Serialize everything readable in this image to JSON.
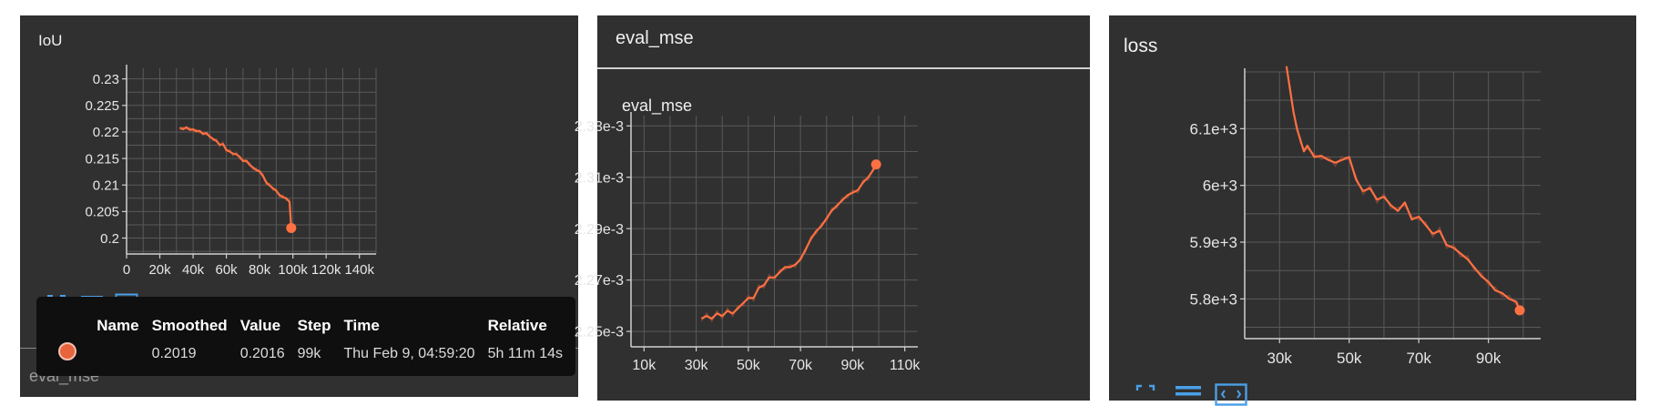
{
  "colors": {
    "panel_bg": "#303030",
    "line": "#ff7043",
    "grid": "#5a5a5a",
    "tooltip_bg": "#0f0f0f"
  },
  "icons": [
    "fullscreen-icon",
    "list-icon",
    "fit-domain-icon"
  ],
  "panels": {
    "iou": {
      "title": "IoU",
      "under_label": "eval_mse"
    },
    "eval": {
      "header": "eval_mse",
      "title": "eval_mse"
    },
    "loss": {
      "title": "loss"
    }
  },
  "tooltip": {
    "headers": [
      "Name",
      "Smoothed",
      "Value",
      "Step",
      "Time",
      "Relative"
    ],
    "row": {
      "name": "",
      "smoothed": "0.2019",
      "value": "0.2016",
      "step": "99k",
      "time": "Thu Feb 9, 04:59:20",
      "relative": "5h 11m 14s"
    }
  },
  "chart_data": [
    {
      "type": "line",
      "title": "IoU",
      "xlim": [
        0,
        150000
      ],
      "ylim": [
        0.197,
        0.232
      ],
      "x_ticks": [
        0,
        20000,
        40000,
        60000,
        80000,
        100000,
        120000,
        140000
      ],
      "x_tick_labels": [
        "0",
        "20k",
        "40k",
        "60k",
        "80k",
        "100k",
        "120k",
        "140k"
      ],
      "y_ticks": [
        0.2,
        0.205,
        0.21,
        0.215,
        0.22,
        0.225,
        0.23
      ],
      "y_tick_labels": [
        "0.2",
        "0.205",
        "0.21",
        "0.215",
        "0.22",
        "0.225",
        "0.23"
      ],
      "grid": true,
      "series": [
        {
          "x": [
            32000,
            34000,
            36000,
            38000,
            40000,
            42000,
            44000,
            46000,
            48000,
            50000,
            52000,
            54000,
            56000,
            58000,
            60000,
            62000,
            64000,
            66000,
            68000,
            70000,
            72000,
            74000,
            76000,
            78000,
            80000,
            82000,
            84000,
            86000,
            88000,
            90000,
            92000,
            94000,
            96000,
            98000,
            99000
          ],
          "y": [
            0.2208,
            0.2205,
            0.2209,
            0.2204,
            0.2205,
            0.2201,
            0.2202,
            0.2196,
            0.2198,
            0.2191,
            0.2187,
            0.2183,
            0.2176,
            0.2177,
            0.2166,
            0.2163,
            0.2159,
            0.2158,
            0.2153,
            0.2145,
            0.2146,
            0.2138,
            0.2133,
            0.2128,
            0.2126,
            0.2117,
            0.2105,
            0.2099,
            0.2094,
            0.2089,
            0.2081,
            0.2077,
            0.2075,
            0.2068,
            0.2019
          ]
        }
      ],
      "last_point": [
        99000,
        0.2019
      ]
    },
    {
      "type": "line",
      "title": "eval_mse",
      "xlim": [
        5000,
        115000
      ],
      "ylim": [
        0.002244,
        0.002334
      ],
      "x_ticks": [
        10000,
        30000,
        50000,
        70000,
        90000,
        110000
      ],
      "x_tick_labels": [
        "10k",
        "30k",
        "50k",
        "70k",
        "90k",
        "110k"
      ],
      "y_ticks": [
        0.00225,
        0.00227,
        0.00229,
        0.00231,
        0.00233
      ],
      "y_tick_labels": [
        "2.25e-3",
        "2.27e-3",
        "2.29e-3",
        "2.31e-3",
        "2.33e-3"
      ],
      "grid": true,
      "series": [
        {
          "x": [
            32000,
            34000,
            36000,
            38000,
            40000,
            42000,
            44000,
            46000,
            48000,
            50000,
            52000,
            54000,
            56000,
            58000,
            60000,
            62000,
            64000,
            66000,
            68000,
            70000,
            72000,
            74000,
            76000,
            78000,
            80000,
            82000,
            84000,
            86000,
            88000,
            90000,
            92000,
            94000,
            96000,
            98000,
            99000
          ],
          "y": [
            0.002255,
            0.002256,
            0.002255,
            0.002257,
            0.002256,
            0.002258,
            0.002257,
            0.002259,
            0.002261,
            0.002263,
            0.002263,
            0.002267,
            0.002268,
            0.002271,
            0.002271,
            0.002273,
            0.002275,
            0.002275,
            0.002276,
            0.002278,
            0.002282,
            0.002286,
            0.002289,
            0.002291,
            0.002294,
            0.002297,
            0.002299,
            0.002301,
            0.002303,
            0.002304,
            0.002305,
            0.002308,
            0.00231,
            0.002313,
            0.002315
          ]
        }
      ],
      "last_point": [
        99000,
        0.002315
      ]
    },
    {
      "type": "line",
      "title": "loss",
      "xlim": [
        20000,
        105000
      ],
      "ylim": [
        5730,
        6200
      ],
      "x_ticks": [
        30000,
        50000,
        70000,
        90000
      ],
      "x_tick_labels": [
        "30k",
        "50k",
        "70k",
        "90k"
      ],
      "y_ticks": [
        5800,
        5900,
        6000,
        6100
      ],
      "y_tick_labels": [
        "5.8e+3",
        "5.9e+3",
        "6e+3",
        "6.1e+3"
      ],
      "grid": true,
      "series": [
        {
          "x": [
            32000,
            33000,
            34000,
            35000,
            36000,
            37000,
            38000,
            40000,
            42000,
            44000,
            46000,
            48000,
            50000,
            52000,
            54000,
            56000,
            58000,
            60000,
            62000,
            64000,
            66000,
            68000,
            70000,
            72000,
            74000,
            76000,
            78000,
            80000,
            82000,
            84000,
            86000,
            88000,
            90000,
            92000,
            94000,
            96000,
            98000,
            99000
          ],
          "y": [
            6210,
            6170,
            6130,
            6100,
            6080,
            6060,
            6070,
            6050,
            6052,
            6045,
            6040,
            6045,
            6050,
            6010,
            5990,
            5995,
            5975,
            5980,
            5965,
            5955,
            5970,
            5940,
            5945,
            5930,
            5915,
            5920,
            5895,
            5890,
            5880,
            5870,
            5855,
            5840,
            5830,
            5815,
            5810,
            5800,
            5795,
            5780
          ]
        }
      ],
      "last_point": [
        99000,
        5780
      ]
    }
  ]
}
